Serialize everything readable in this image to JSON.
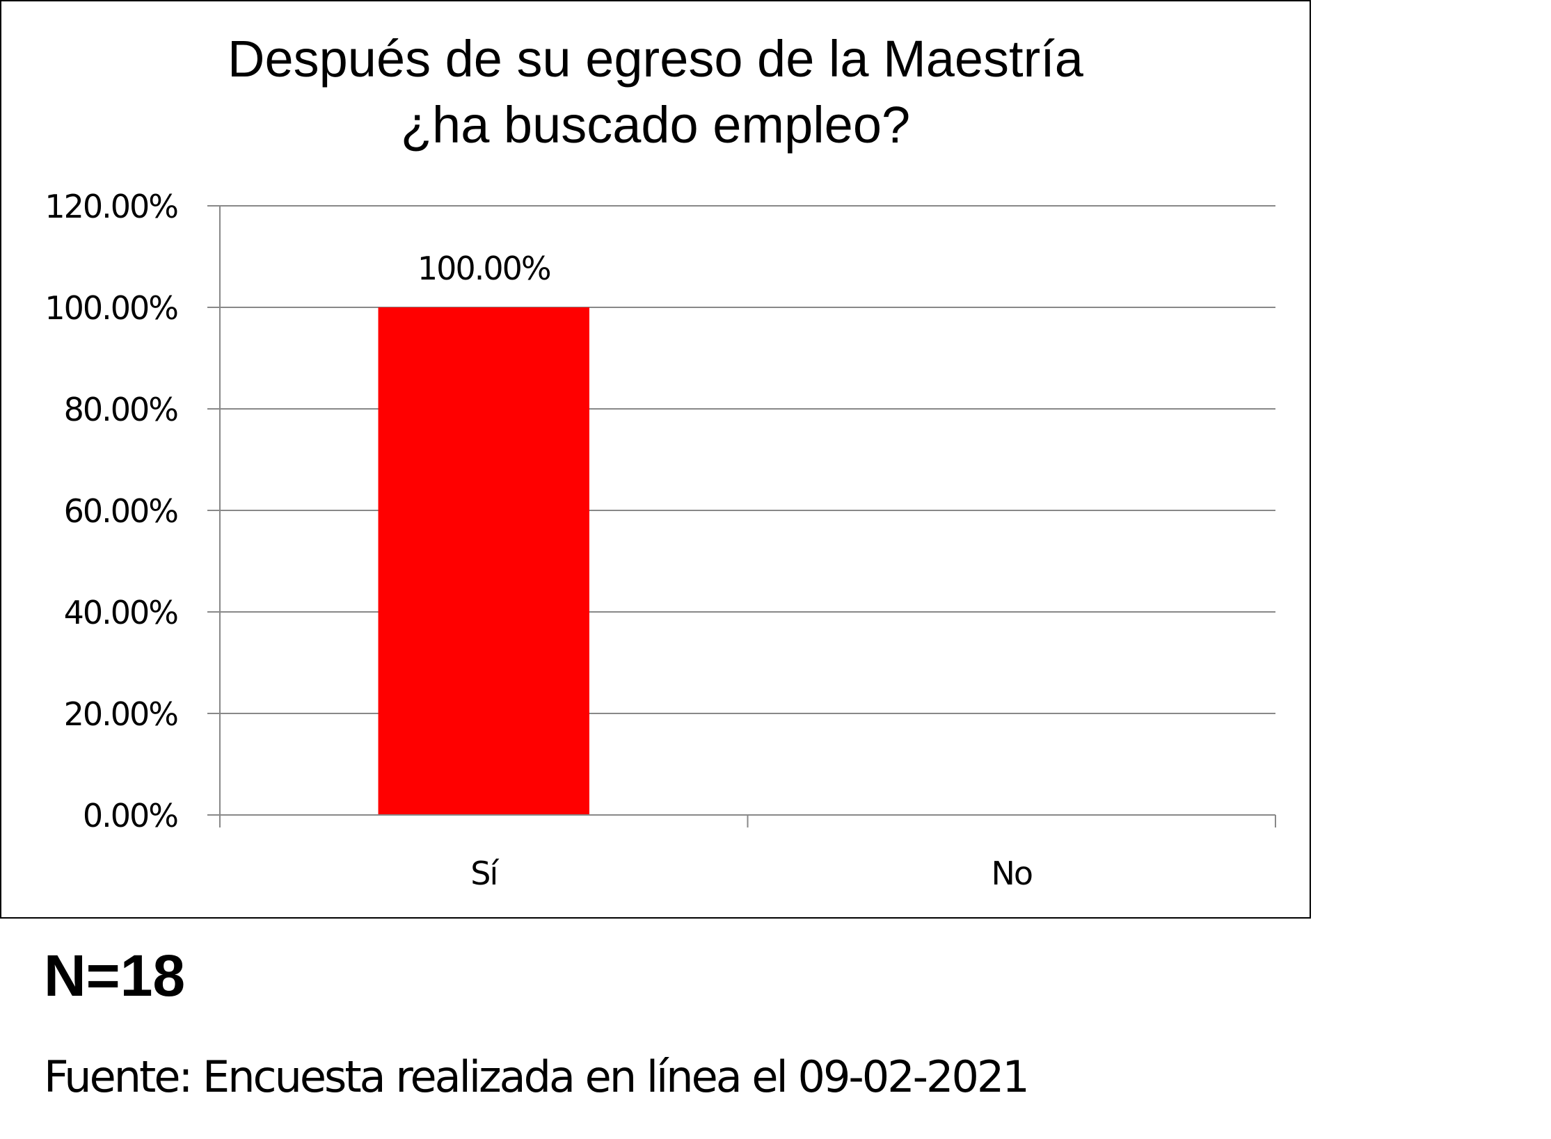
{
  "chart_data": {
    "type": "bar",
    "title": [
      "Después de su egreso de la Maestría",
      "¿ha buscado empleo?"
    ],
    "categories": [
      "Sí",
      "No"
    ],
    "values": [
      100,
      0
    ],
    "data_labels": [
      "100.00%",
      ""
    ],
    "ylim": [
      0,
      120
    ],
    "yticks": [
      0,
      20,
      40,
      60,
      80,
      100,
      120
    ],
    "ytick_labels": [
      "0.00%",
      "20.00%",
      "40.00%",
      "60.00%",
      "80.00%",
      "100.00%",
      "120.00%"
    ],
    "xlabel": "",
    "ylabel": "",
    "grid": true,
    "legend": "none",
    "bar_color": "#FF0000",
    "grid_color": "#888888"
  },
  "notes": {
    "n": "N=18",
    "source": "Fuente: Encuesta realizada en línea el 09-02-2021"
  }
}
